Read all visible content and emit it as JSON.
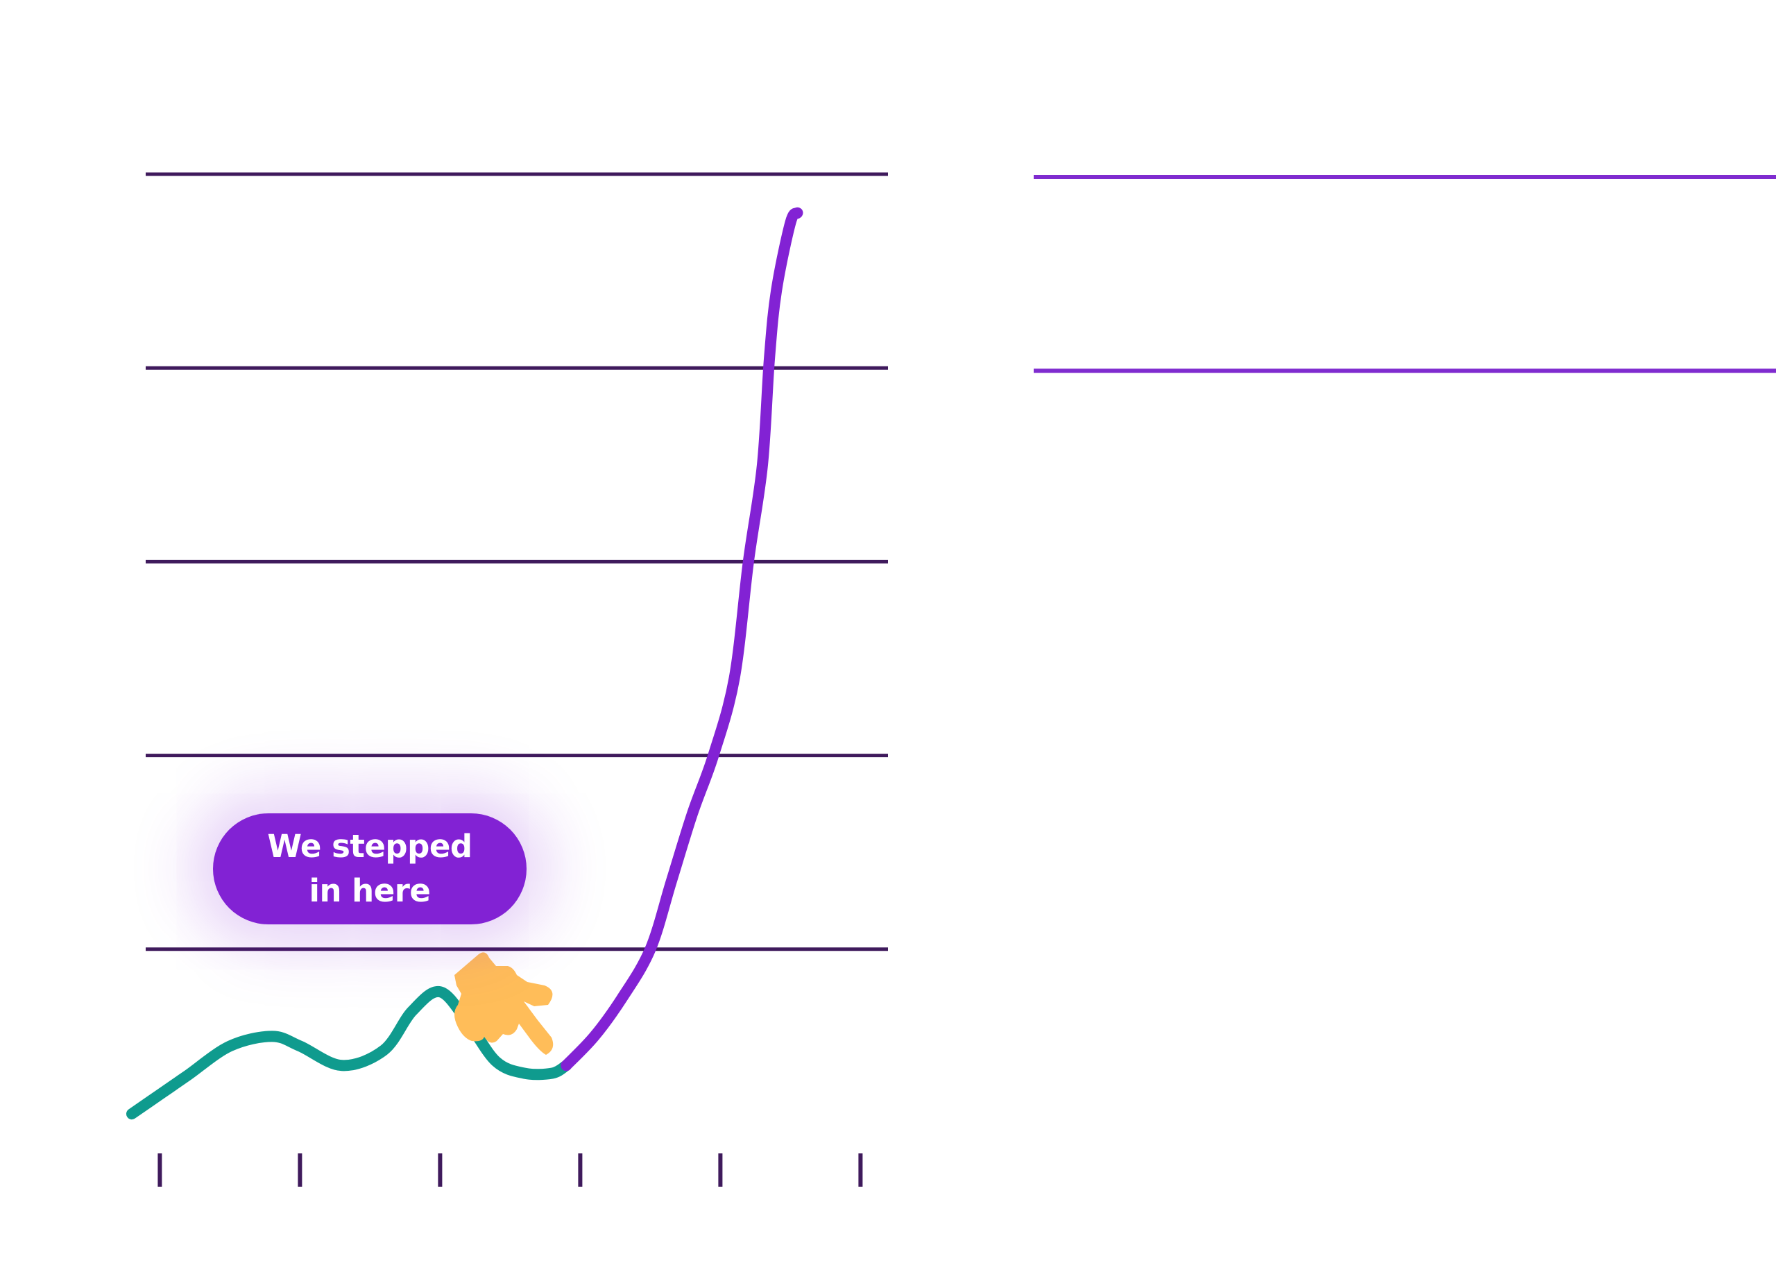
{
  "colors": {
    "background": "#ffffff",
    "gridline": "#3f1a5c",
    "right_gridline": "#7f2ccf",
    "tick": "#3f1a5c",
    "before": "#0f9b8e",
    "after": "#8222d4",
    "callout_bg": "#8222d4",
    "callout_text": "#ffffff",
    "hand": "#ffbd59"
  },
  "callout": {
    "text": "We stepped\nin here"
  },
  "icons": {
    "pointer": "pointing-hand-icon"
  },
  "chart_data": {
    "type": "line",
    "title": "",
    "xlabel": "",
    "ylabel": "",
    "xlim": [
      0,
      6
    ],
    "ylim": [
      0,
      5
    ],
    "x_ticks": [
      0.2,
      1.2,
      2.2,
      3.2,
      4.2,
      5.2
    ],
    "y_gridlines": [
      1,
      2,
      3,
      4,
      5
    ],
    "grid": true,
    "legend": "none",
    "series": [
      {
        "segment": "before",
        "color": "#0f9b8e",
        "x": [
          0.0,
          0.2,
          0.4,
          0.7,
          1.0,
          1.2,
          1.5,
          1.8,
          2.0,
          2.2,
          2.4,
          2.6,
          2.8,
          3.0,
          3.1
        ],
        "y": [
          0.15,
          0.25,
          0.35,
          0.5,
          0.55,
          0.5,
          0.4,
          0.48,
          0.68,
          0.78,
          0.62,
          0.42,
          0.36,
          0.36,
          0.4
        ]
      },
      {
        "segment": "after",
        "color": "#8222d4",
        "x": [
          3.1,
          3.3,
          3.5,
          3.7,
          3.85,
          4.0,
          4.15,
          4.3,
          4.4,
          4.5,
          4.55,
          4.6,
          4.7,
          4.75
        ],
        "y": [
          0.4,
          0.55,
          0.75,
          1.0,
          1.35,
          1.7,
          2.0,
          2.4,
          3.0,
          3.5,
          4.05,
          4.4,
          4.75,
          4.8
        ]
      }
    ]
  }
}
